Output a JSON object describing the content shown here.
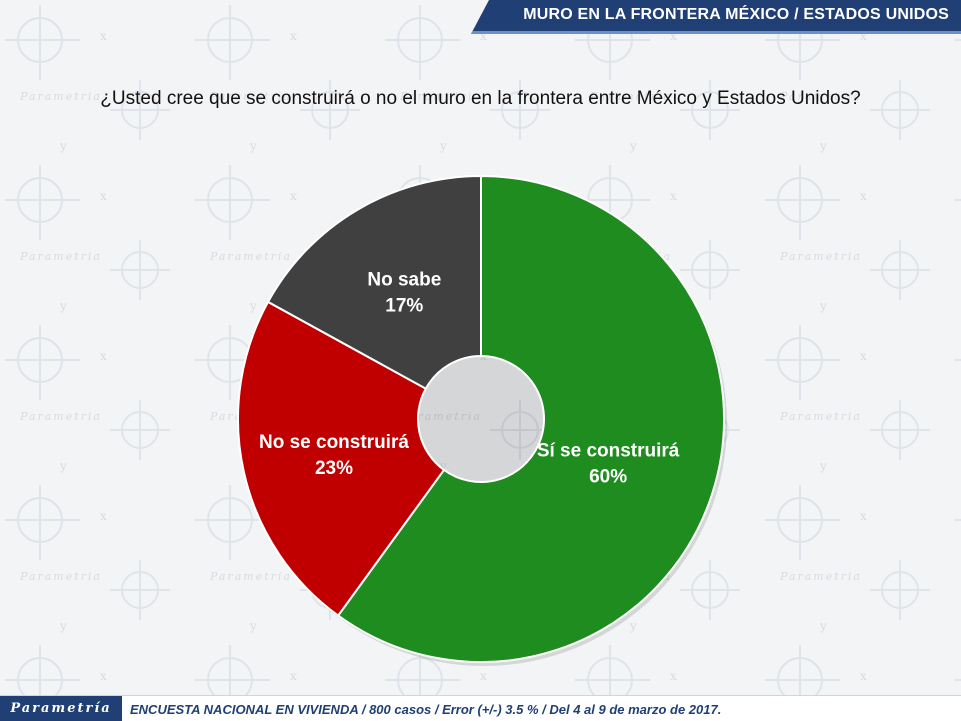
{
  "header": {
    "title": "MURO EN LA FRONTERA MÉXICO / ESTADOS UNIDOS"
  },
  "question": "¿Usted cree que se construirá o no el muro en la frontera entre México y Estados Unidos?",
  "footer": {
    "brand": "Parametría",
    "note": "ENCUESTA NACIONAL EN VIVIENDA / 800 casos / Error (+/-) 3.5 % / Del 4 al 9 de marzo de 2017."
  },
  "chart_data": {
    "type": "pie",
    "variant": "donut",
    "title": "",
    "slices": [
      {
        "label": "Sí se construirá",
        "value": 60,
        "value_label": "60%",
        "color": "#1e8c1e"
      },
      {
        "label": "No se construirá",
        "value": 23,
        "value_label": "23%",
        "color": "#c00000"
      },
      {
        "label": "No sabe",
        "value": 17,
        "value_label": "17%",
        "color": "#404040"
      }
    ],
    "start_angle": "12 o'clock",
    "direction": "clockwise",
    "legend": "none"
  }
}
